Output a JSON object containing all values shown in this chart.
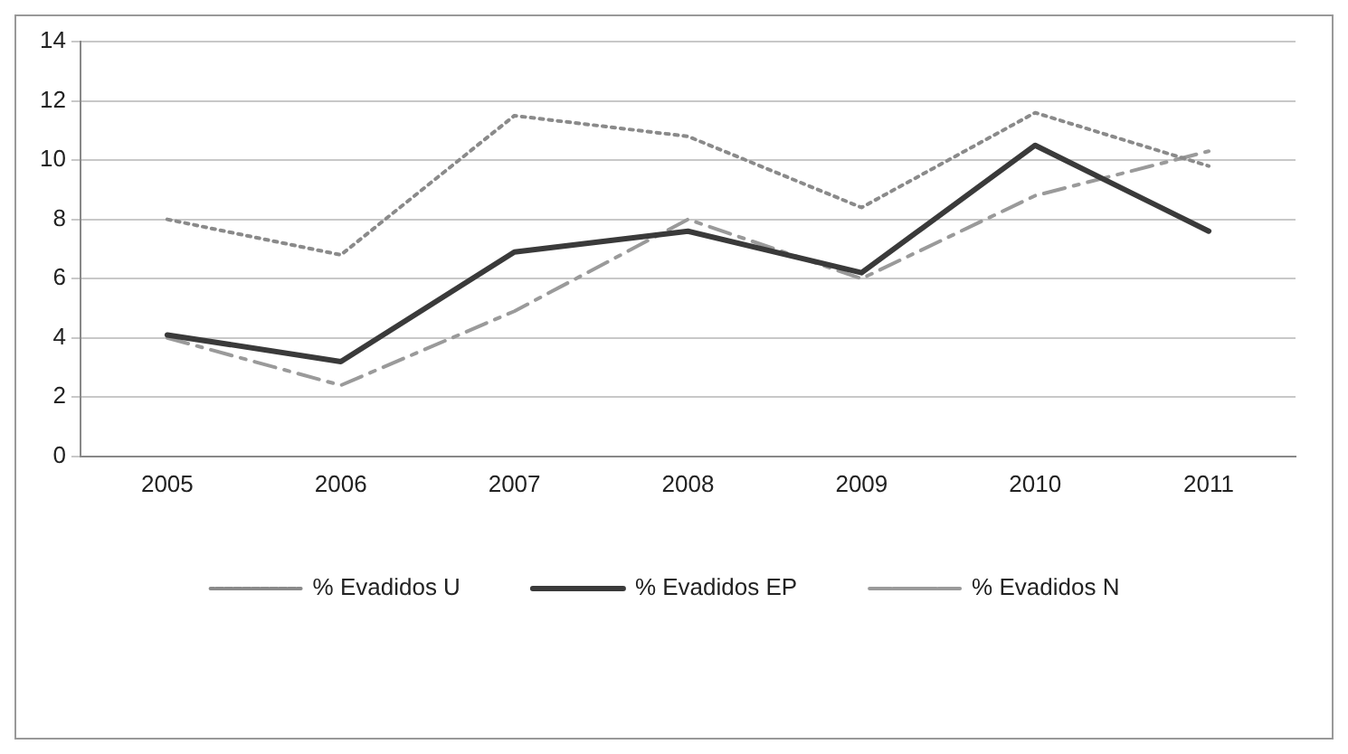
{
  "chart_data": {
    "type": "line",
    "categories": [
      "2005",
      "2006",
      "2007",
      "2008",
      "2009",
      "2010",
      "2011"
    ],
    "series": [
      {
        "name": "% Evadidos U",
        "color": "#8a8a8a",
        "line_style": "dotted",
        "values": [
          8.0,
          6.8,
          11.5,
          10.8,
          8.4,
          11.6,
          9.8
        ]
      },
      {
        "name": "% Evadidos EP",
        "color": "#3a3a3a",
        "line_style": "solid",
        "values": [
          4.1,
          3.2,
          6.9,
          7.6,
          6.2,
          10.5,
          7.6
        ]
      },
      {
        "name": "% Evadidos N",
        "color": "#9a9a9a",
        "line_style": "dashed",
        "values": [
          4.0,
          2.4,
          4.9,
          8.0,
          6.0,
          8.8,
          10.3
        ]
      }
    ],
    "ylim": [
      0,
      14
    ],
    "yticks": [
      0,
      2,
      4,
      6,
      8,
      10,
      12,
      14
    ],
    "grid": "y",
    "legend": "bottom",
    "marker": "none"
  }
}
